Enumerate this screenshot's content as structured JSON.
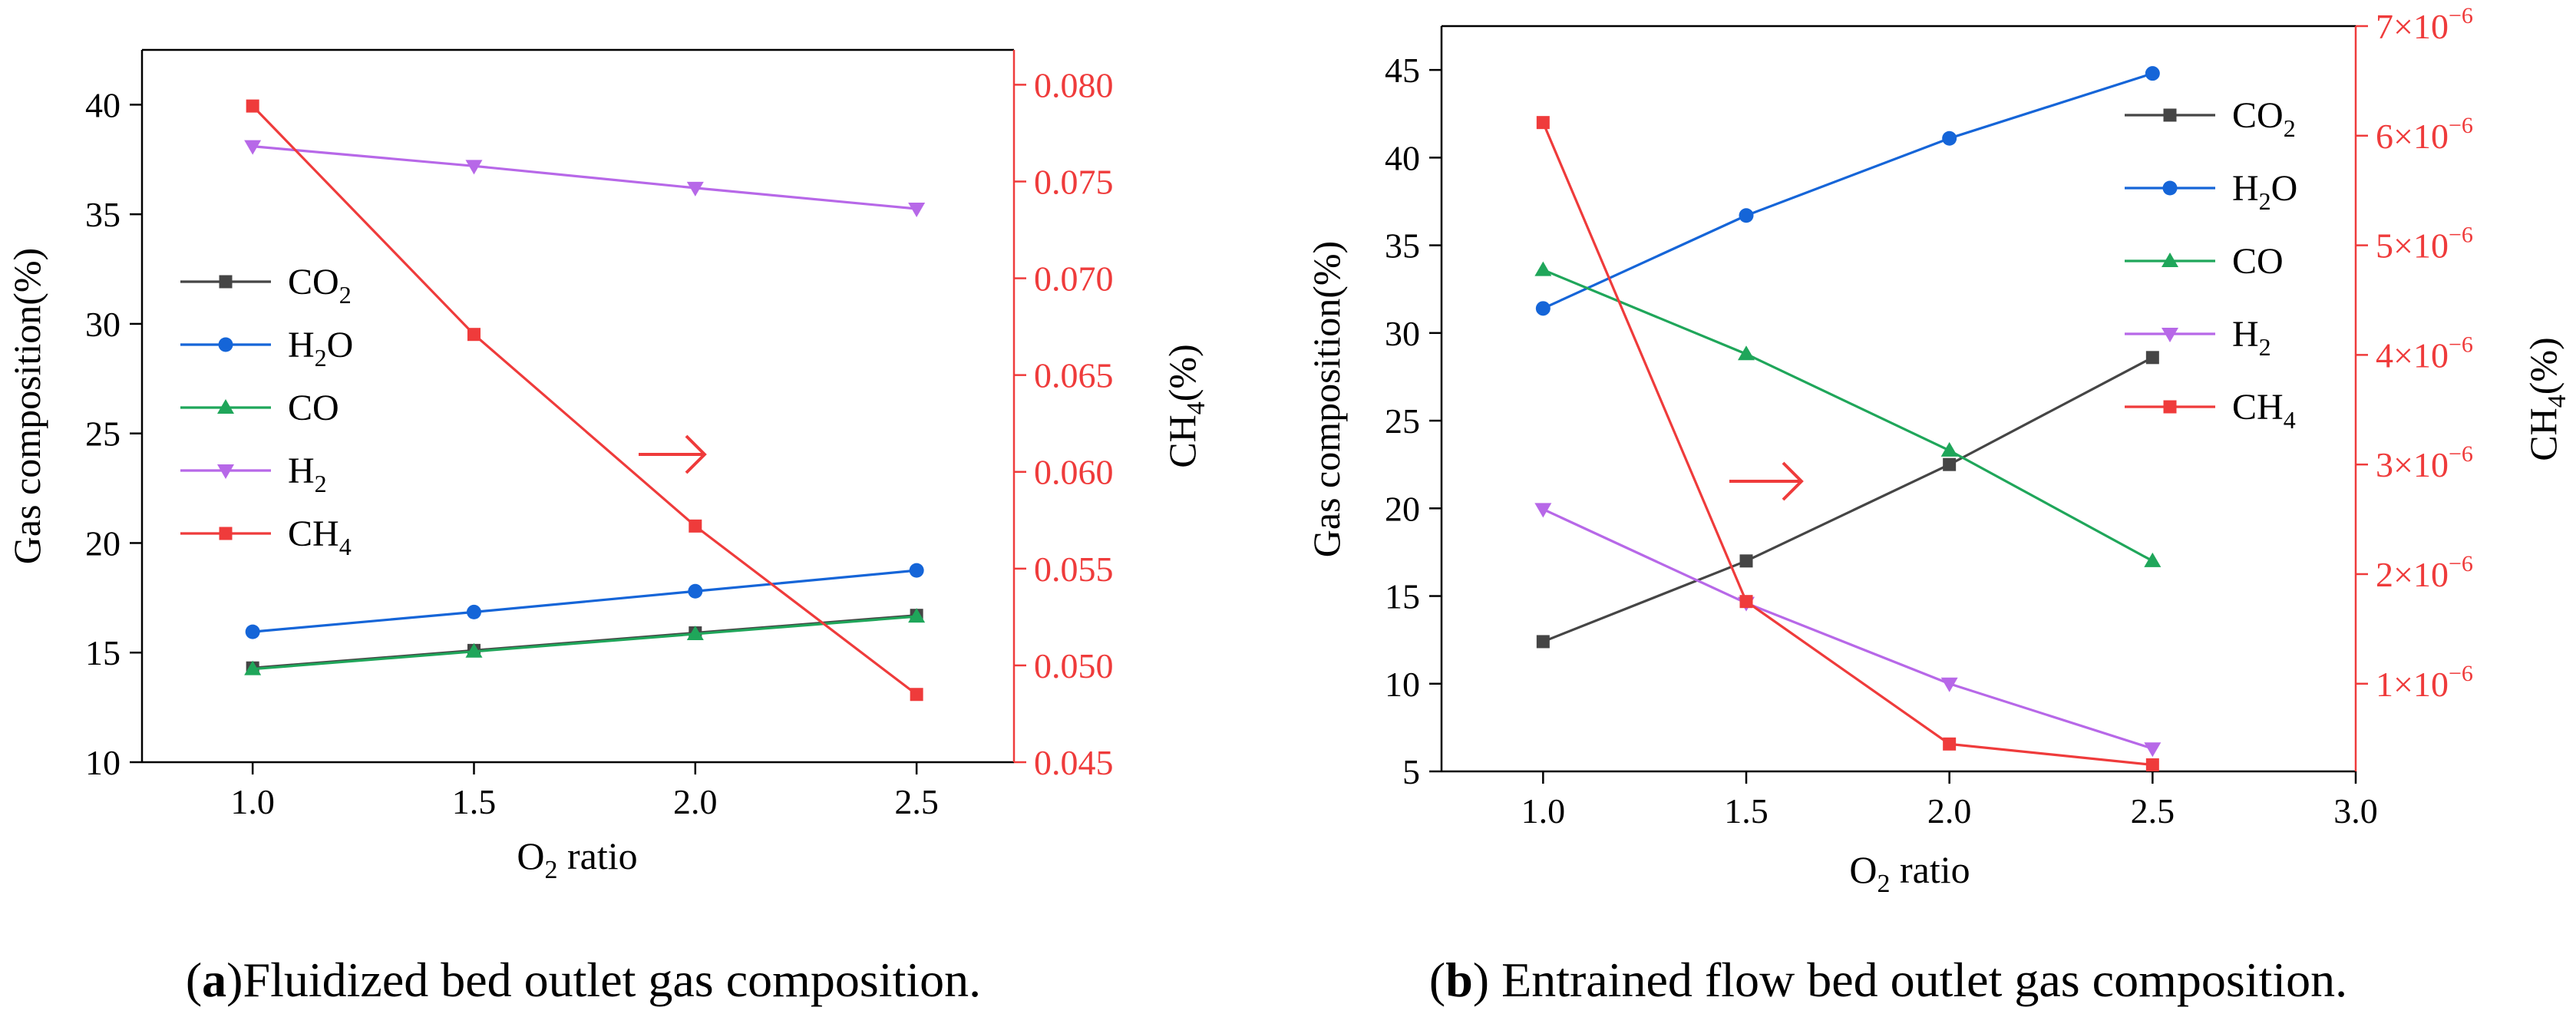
{
  "colors": {
    "co2": "#454545",
    "h2o": "#1565d8",
    "co": "#1fa65a",
    "h2": "#b768e8",
    "ch4": "#ef3b3b",
    "axis": "#000000",
    "right_axis": "#ef3b3b"
  },
  "chart_data": [
    {
      "id": "a",
      "type": "line",
      "caption": {
        "letter": "a",
        "text": "Fluidized bed outlet gas composition."
      },
      "xlabel": {
        "base": "O",
        "sub": "2",
        "rest": " ratio"
      },
      "ylabel": "Gas composition(%)",
      "y2label": {
        "base": "CH",
        "sub": "4",
        "rest": "(%)"
      },
      "xlim": [
        0.75,
        2.72
      ],
      "ylim": [
        10,
        42.5
      ],
      "y2lim": [
        0.045,
        0.0818
      ],
      "x_ticks": [
        1.0,
        1.5,
        2.0,
        2.5
      ],
      "x_tick_labels": [
        "1.0",
        "1.5",
        "2.0",
        "2.5"
      ],
      "y_ticks": [
        10,
        15,
        20,
        25,
        30,
        35,
        40
      ],
      "y_tick_labels": [
        "10",
        "15",
        "20",
        "25",
        "30",
        "35",
        "40"
      ],
      "y2_ticks": [
        0.045,
        0.05,
        0.055,
        0.06,
        0.065,
        0.07,
        0.075,
        0.08
      ],
      "y2_tick_labels": [
        "0.045",
        "0.050",
        "0.055",
        "0.060",
        "0.065",
        "0.070",
        "0.075",
        "0.080"
      ],
      "legend_position": "center-left",
      "annotation": "arrow pointing right toward CH4 axis",
      "x": [
        1.0,
        1.5,
        2.0,
        2.5
      ],
      "series": [
        {
          "key": "co2",
          "name": "CO2",
          "label": {
            "base": "CO",
            "sub": "2"
          },
          "marker": "square",
          "axis": "left",
          "values": [
            14.3,
            15.1,
            15.9,
            16.7
          ]
        },
        {
          "key": "h2o",
          "name": "H2O",
          "label": {
            "base": "H",
            "sub": "2",
            "rest": "O"
          },
          "marker": "circle",
          "axis": "left",
          "values": [
            15.95,
            16.85,
            17.8,
            18.75
          ]
        },
        {
          "key": "co",
          "name": "CO",
          "label": {
            "base": "CO"
          },
          "marker": "triangle-up",
          "axis": "left",
          "values": [
            14.25,
            15.05,
            15.85,
            16.65
          ]
        },
        {
          "key": "h2",
          "name": "H2",
          "label": {
            "base": "H",
            "sub": "2"
          },
          "marker": "triangle-down",
          "axis": "left",
          "values": [
            38.1,
            37.2,
            36.2,
            35.25
          ]
        },
        {
          "key": "ch4",
          "name": "CH4",
          "label": {
            "base": "CH",
            "sub": "4"
          },
          "marker": "square",
          "axis": "right",
          "values": [
            0.0789,
            0.0671,
            0.0572,
            0.0485
          ]
        }
      ]
    },
    {
      "id": "b",
      "type": "line",
      "caption": {
        "letter": "b",
        "text": " Entrained flow bed outlet gas composition."
      },
      "xlabel": {
        "base": "O",
        "sub": "2",
        "rest": " ratio"
      },
      "ylabel": "Gas composition(%)",
      "y2label": {
        "base": "CH",
        "sub": "4",
        "rest": "(%)"
      },
      "xlim": [
        0.75,
        3.0
      ],
      "ylim": [
        5,
        47.5
      ],
      "y2lim": [
        0.2,
        7.0
      ],
      "x_ticks": [
        1.0,
        1.5,
        2.0,
        2.5,
        3.0
      ],
      "x_tick_labels": [
        "1.0",
        "1.5",
        "2.0",
        "2.5",
        "3.0"
      ],
      "y_ticks": [
        5,
        10,
        15,
        20,
        25,
        30,
        35,
        40,
        45
      ],
      "y_tick_labels": [
        "5",
        "10",
        "15",
        "20",
        "25",
        "30",
        "35",
        "40",
        "45"
      ],
      "y2_ticks": [
        1,
        2,
        3,
        4,
        5,
        6,
        7
      ],
      "y2_tick_labels": [
        {
          "m": "1",
          "sup": "−6"
        },
        {
          "m": "2",
          "sup": "−6"
        },
        {
          "m": "3",
          "sup": "−6"
        },
        {
          "m": "4",
          "sup": "−6"
        },
        {
          "m": "5",
          "sup": "−6"
        },
        {
          "m": "6",
          "sup": "−6"
        },
        {
          "m": "7",
          "sup": "−6"
        }
      ],
      "y2_units": "×10^-6",
      "legend_position": "top-right",
      "annotation": "arrow pointing right toward CH4 axis",
      "x": [
        1.0,
        1.5,
        2.0,
        2.5
      ],
      "series": [
        {
          "key": "co2",
          "name": "CO2",
          "label": {
            "base": "CO",
            "sub": "2"
          },
          "marker": "square",
          "axis": "left",
          "values": [
            12.4,
            17.0,
            22.5,
            28.6
          ]
        },
        {
          "key": "h2o",
          "name": "H2O",
          "label": {
            "base": "H",
            "sub": "2",
            "rest": "O"
          },
          "marker": "circle",
          "axis": "left",
          "values": [
            31.4,
            36.7,
            41.1,
            44.8
          ]
        },
        {
          "key": "co",
          "name": "CO",
          "label": {
            "base": "CO"
          },
          "marker": "triangle-up",
          "axis": "left",
          "values": [
            33.6,
            28.8,
            23.3,
            17.0
          ]
        },
        {
          "key": "h2",
          "name": "H2",
          "label": {
            "base": "H",
            "sub": "2"
          },
          "marker": "triangle-down",
          "axis": "left",
          "values": [
            19.95,
            14.6,
            10.0,
            6.3
          ]
        },
        {
          "key": "ch4",
          "name": "CH4",
          "label": {
            "base": "CH",
            "sub": "4"
          },
          "marker": "square",
          "axis": "right",
          "values": [
            6.12,
            1.75,
            0.45,
            0.26
          ]
        }
      ]
    }
  ]
}
